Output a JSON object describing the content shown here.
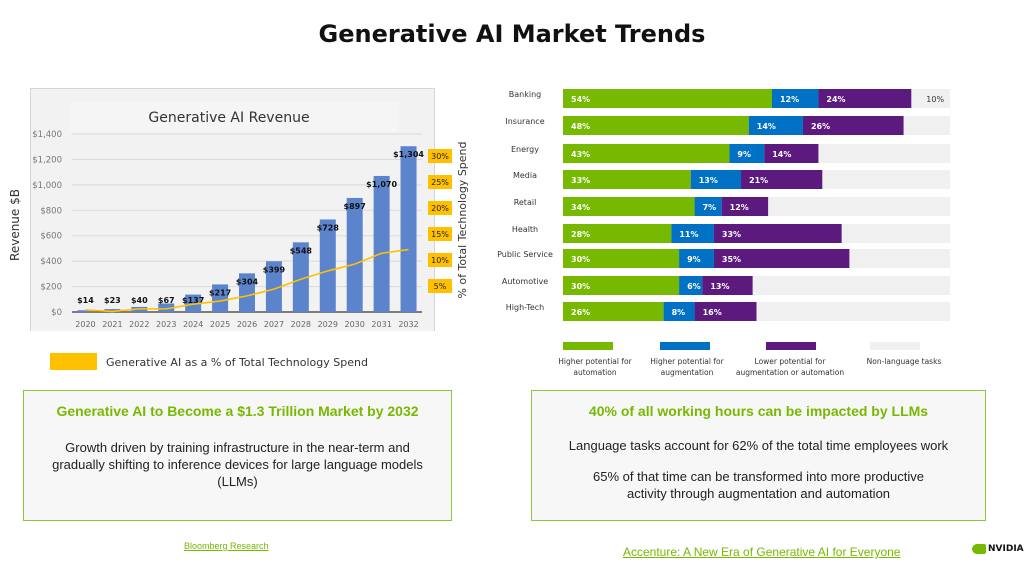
{
  "title": "Generative AI Market Trends",
  "colors": {
    "accent": "#76b900",
    "revenue_bar": "#5b84cc",
    "line": "#ffc000",
    "automation": "#76b900",
    "augmentation": "#0071c5",
    "lower": "#5c1a7f",
    "non_language": "#f0f0f0"
  },
  "chart_data": [
    {
      "type": "bar",
      "title": "Generative AI Revenue",
      "ylabel": "Revenue $B",
      "y2label": "% of Total Technology Spend",
      "categories": [
        "2020",
        "2021",
        "2022",
        "2023",
        "2024",
        "2025",
        "2026",
        "2027",
        "2028",
        "2029",
        "2030",
        "2031",
        "2032"
      ],
      "series": [
        {
          "type": "bar",
          "values": [
            14,
            23,
            40,
            67,
            137,
            217,
            304,
            399,
            548,
            728,
            897,
            1070,
            1304
          ],
          "labels": [
            "$14",
            "$23",
            "$40",
            "$67",
            "$137",
            "$217",
            "$304",
            "$399",
            "$548",
            "$728",
            "$897",
            "$1,070",
            "$1,304"
          ]
        },
        {
          "type": "line",
          "name": "Generative AI as a % of Total Technology Spend",
          "axis": "right",
          "values": [
            0.4,
            0.1,
            0.6,
            0.6,
            1.5,
            2.1,
            3.1,
            4.4,
            6.3,
            7.9,
            9.2,
            11.3,
            12.0
          ]
        }
      ],
      "ylim": [
        0,
        1400
      ],
      "yticks": [
        "$0",
        "$200",
        "$400",
        "$600",
        "$800",
        "$1,000",
        "$1,200",
        "$1,400"
      ],
      "y2lim": [
        0,
        30
      ],
      "y2ticks": [
        "5%",
        "10%",
        "15%",
        "20%",
        "25%",
        "30%"
      ],
      "grid": true,
      "legend": "bottom"
    },
    {
      "type": "bar",
      "orientation": "horizontal",
      "stacked": true,
      "categories": [
        "Banking",
        "Insurance",
        "Energy",
        "Media",
        "Retail",
        "Health",
        "Public Service",
        "Automotive",
        "High-Tech"
      ],
      "series": [
        {
          "name": "Higher potential for automation",
          "values": [
            54,
            48,
            43,
            33,
            34,
            28,
            30,
            30,
            26
          ]
        },
        {
          "name": "Higher potential for augmentation",
          "values": [
            12,
            14,
            9,
            13,
            7,
            11,
            9,
            6,
            8
          ]
        },
        {
          "name": "Lower potential for augmentation or automation",
          "values": [
            24,
            26,
            14,
            21,
            12,
            33,
            35,
            13,
            16
          ]
        },
        {
          "name": "Non-language tasks",
          "values": [
            10,
            null,
            null,
            null,
            null,
            null,
            null,
            null,
            null
          ]
        }
      ],
      "xlim": [
        0,
        100
      ],
      "legend": "bottom"
    }
  ],
  "left_box": {
    "heading": "Generative AI to Become a $1.3 Trillion Market by 2032",
    "body": "Growth driven by training infrastructure in the near-term and gradually shifting to inference devices for large language models (LLMs)"
  },
  "right_box": {
    "heading": "40% of all working hours can be impacted by LLMs",
    "line1": "Language tasks account for 62% of the total time employees work",
    "line2": "65% of that time can be transformed into more productive activity through augmentation and automation"
  },
  "sources": {
    "left": "Bloomberg Research",
    "right": "Accenture: A New Era of Generative AI for Everyone"
  },
  "logo": {
    "text": "NVIDIA"
  }
}
